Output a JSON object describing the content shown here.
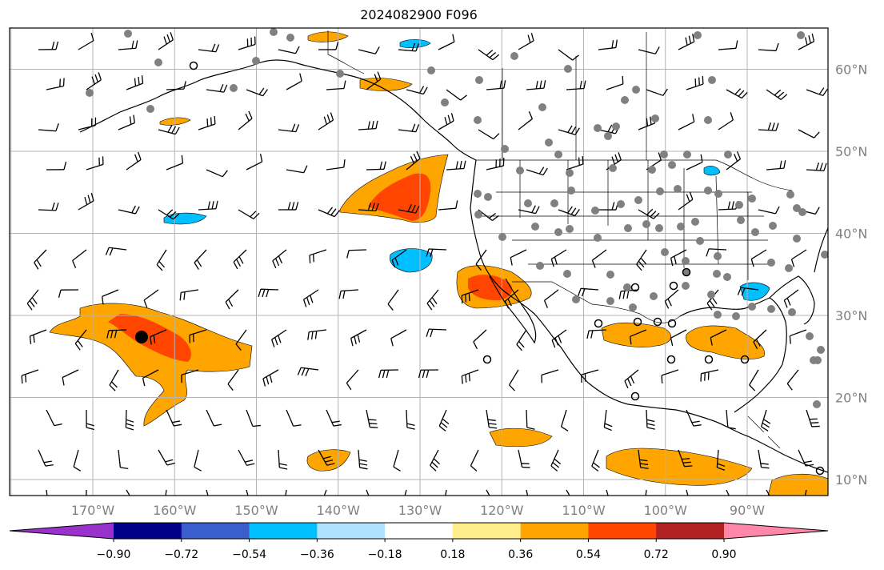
{
  "title": "2024082900 F096",
  "lat_labels": [
    {
      "text": "60°N",
      "lat": 60
    },
    {
      "text": "50°N",
      "lat": 50
    },
    {
      "text": "40°N",
      "lat": 40
    },
    {
      "text": "30°N",
      "lat": 30
    },
    {
      "text": "20°N",
      "lat": 20
    },
    {
      "text": "10°N",
      "lat": 10
    }
  ],
  "lon_labels": [
    {
      "text": "170°W",
      "lon": -170
    },
    {
      "text": "160°W",
      "lon": -160
    },
    {
      "text": "150°W",
      "lon": -150
    },
    {
      "text": "140°W",
      "lon": -140
    },
    {
      "text": "130°W",
      "lon": -130
    },
    {
      "text": "120°W",
      "lon": -120
    },
    {
      "text": "110°W",
      "lon": -110
    },
    {
      "text": "100°W",
      "lon": -100
    },
    {
      "text": "90°W",
      "lon": -90
    }
  ],
  "colorbar": {
    "tick_labels": [
      "−0.90",
      "−0.72",
      "−0.54",
      "−0.36",
      "−0.18",
      "0.18",
      "0.36",
      "0.54",
      "0.72",
      "0.90"
    ],
    "colors": [
      "#9932cc",
      "#00008b",
      "#3a5fcd",
      "#00bfff",
      "#b0e2ff",
      "#ffffff",
      "#ffec8b",
      "#ffa500",
      "#ff4500",
      "#b22222",
      "#ff88aa"
    ]
  },
  "colors": {
    "grid": "#b4b4b4",
    "coast": "#000000",
    "station": "#808080"
  }
}
